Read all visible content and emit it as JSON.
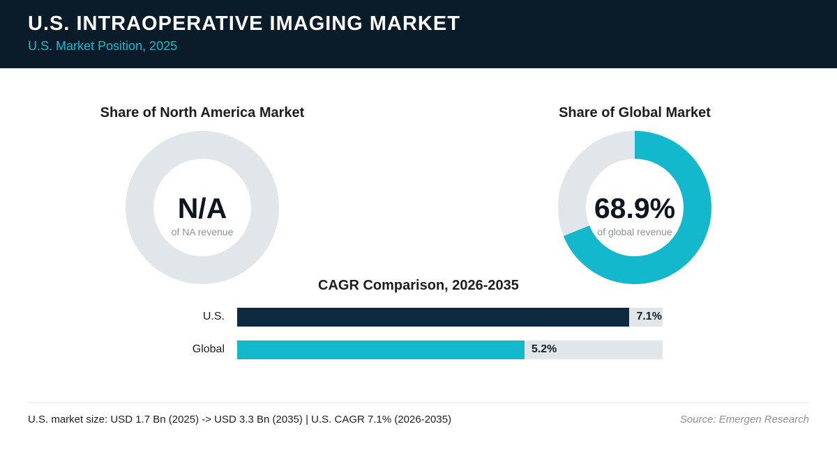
{
  "header": {
    "title": "U.S. INTRAOPERATIVE IMAGING MARKET",
    "subtitle": "U.S. Market Position, 2025"
  },
  "colors": {
    "header_bg": "#0a1b29",
    "accent": "#14b8cc",
    "navy": "#0e2a40",
    "track": "#e1e6ea"
  },
  "chart_data": [
    {
      "type": "pie",
      "title": "Share of North America Market",
      "center_value": "N/A",
      "center_caption": "of NA revenue",
      "value": null
    },
    {
      "type": "pie",
      "title": "Share of Global Market",
      "center_value": "68.9%",
      "center_caption": "of global revenue",
      "value": 68.9
    },
    {
      "type": "bar",
      "orientation": "horizontal",
      "title": "CAGR Comparison, 2026-2035",
      "categories": [
        "U.S.",
        "Global"
      ],
      "values": [
        7.1,
        5.2
      ],
      "value_labels": [
        "7.1%",
        "5.2%"
      ],
      "colors": [
        "#0e2a40",
        "#14b8cc"
      ]
    }
  ],
  "footer": {
    "note": "U.S. market size: USD 1.7 Bn (2025) -> USD 3.3 Bn (2035)  |  U.S. CAGR 7.1% (2026-2035)",
    "source": "Source: Emergen Research"
  }
}
